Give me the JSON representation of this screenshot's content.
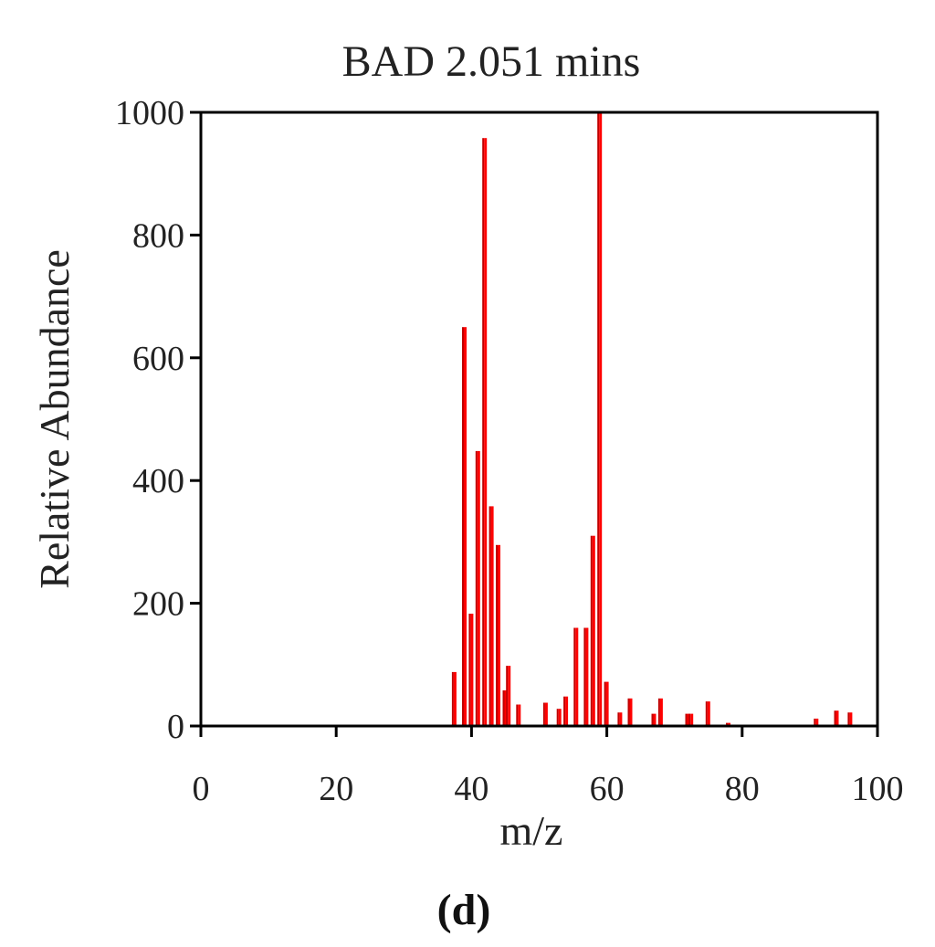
{
  "panel_label": "(d)",
  "chart_data": {
    "type": "bar",
    "title": "BAD 2.051 mins",
    "xlabel": "m/z",
    "ylabel": "Relative Abundance",
    "xlim": [
      0,
      100
    ],
    "ylim": [
      0,
      1000
    ],
    "xticks": [
      0,
      20,
      40,
      60,
      80,
      100
    ],
    "yticks": [
      0,
      200,
      400,
      600,
      800,
      1000
    ],
    "grid": false,
    "legend": "none",
    "bar_color": "#ff0000",
    "bar_color_dark": "#c00000",
    "peaks": [
      {
        "x": 37.5,
        "y": 88
      },
      {
        "x": 39,
        "y": 650
      },
      {
        "x": 40,
        "y": 183
      },
      {
        "x": 41,
        "y": 448
      },
      {
        "x": 42,
        "y": 958
      },
      {
        "x": 43,
        "y": 358
      },
      {
        "x": 44,
        "y": 295
      },
      {
        "x": 45,
        "y": 58
      },
      {
        "x": 45.5,
        "y": 98
      },
      {
        "x": 47,
        "y": 35
      },
      {
        "x": 51,
        "y": 38
      },
      {
        "x": 53,
        "y": 28
      },
      {
        "x": 54,
        "y": 48
      },
      {
        "x": 55.5,
        "y": 160
      },
      {
        "x": 57,
        "y": 160
      },
      {
        "x": 58,
        "y": 310
      },
      {
        "x": 59,
        "y": 1000
      },
      {
        "x": 60,
        "y": 72
      },
      {
        "x": 62,
        "y": 22
      },
      {
        "x": 63.5,
        "y": 45
      },
      {
        "x": 67,
        "y": 20
      },
      {
        "x": 68,
        "y": 45
      },
      {
        "x": 72,
        "y": 20
      },
      {
        "x": 72.5,
        "y": 20
      },
      {
        "x": 75,
        "y": 40
      },
      {
        "x": 78,
        "y": 5
      },
      {
        "x": 91,
        "y": 12
      },
      {
        "x": 94,
        "y": 25
      },
      {
        "x": 96,
        "y": 22
      }
    ]
  }
}
